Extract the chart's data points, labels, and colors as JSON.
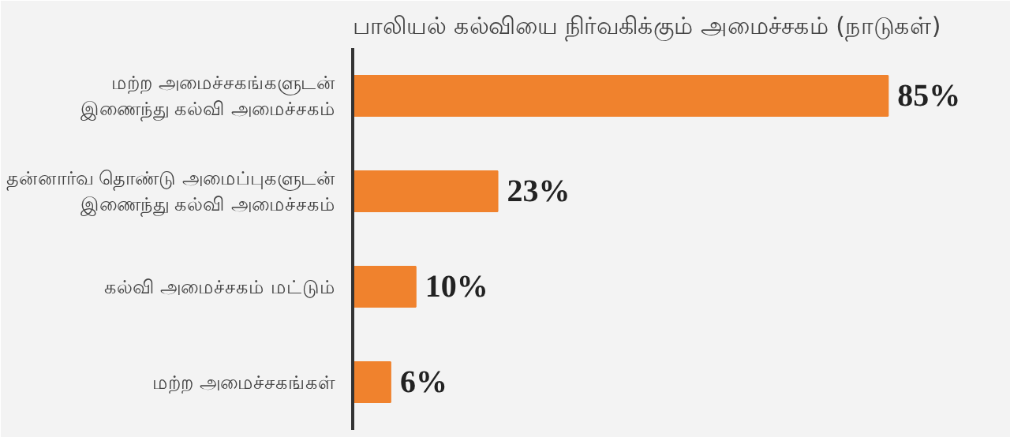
{
  "chart_data": {
    "type": "bar",
    "orientation": "horizontal",
    "title": "பாலியல் கல்வியை நிர்வகிக்கும் அமைச்சகம் (நாடுகள்)",
    "categories": [
      "மற்ற அமைச்சகங்களுடன்\nஇணைந்து கல்வி அமைச்சகம்",
      "தன்னார்வ தொண்டு அமைப்புகளுடன்\nஇணைந்து கல்வி அமைச்சகம்",
      "கல்வி அமைச்சகம் மட்டும்",
      "மற்ற அமைச்சகங்கள்"
    ],
    "values": [
      85,
      23,
      10,
      6
    ],
    "value_labels": [
      "85%",
      "23%",
      "10%",
      "6%"
    ],
    "color": "#f0822d",
    "grid": false
  }
}
